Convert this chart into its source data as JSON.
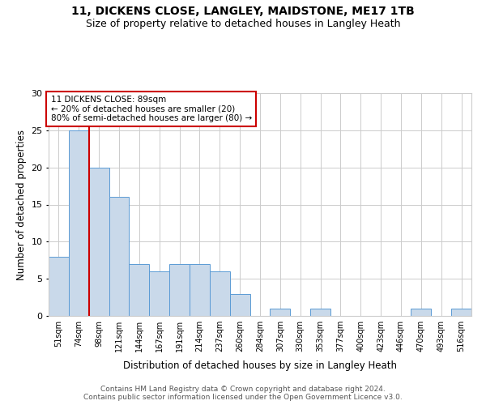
{
  "title1": "11, DICKENS CLOSE, LANGLEY, MAIDSTONE, ME17 1TB",
  "title2": "Size of property relative to detached houses in Langley Heath",
  "xlabel": "Distribution of detached houses by size in Langley Heath",
  "ylabel": "Number of detached properties",
  "bar_labels": [
    "51sqm",
    "74sqm",
    "98sqm",
    "121sqm",
    "144sqm",
    "167sqm",
    "191sqm",
    "214sqm",
    "237sqm",
    "260sqm",
    "284sqm",
    "307sqm",
    "330sqm",
    "353sqm",
    "377sqm",
    "400sqm",
    "423sqm",
    "446sqm",
    "470sqm",
    "493sqm",
    "516sqm"
  ],
  "bar_values": [
    8,
    25,
    20,
    16,
    7,
    6,
    7,
    7,
    6,
    3,
    0,
    1,
    0,
    1,
    0,
    0,
    0,
    0,
    1,
    0,
    1
  ],
  "bar_color": "#c9d9ea",
  "bar_edgecolor": "#5b9bd5",
  "vline_x": 1.5,
  "vline_color": "#cc0000",
  "annotation_lines": [
    "11 DICKENS CLOSE: 89sqm",
    "← 20% of detached houses are smaller (20)",
    "80% of semi-detached houses are larger (80) →"
  ],
  "annotation_box_color": "#ffffff",
  "annotation_box_edgecolor": "#cc0000",
  "ylim": [
    0,
    30
  ],
  "yticks": [
    0,
    5,
    10,
    15,
    20,
    25,
    30
  ],
  "footer1": "Contains HM Land Registry data © Crown copyright and database right 2024.",
  "footer2": "Contains public sector information licensed under the Open Government Licence v3.0.",
  "grid_color": "#cccccc",
  "bg_color": "#ffffff",
  "title1_fontsize": 10,
  "title2_fontsize": 9,
  "xlabel_fontsize": 8.5,
  "ylabel_fontsize": 8.5,
  "xtick_fontsize": 7,
  "ytick_fontsize": 8,
  "footer_fontsize": 6.5,
  "annot_fontsize": 7.5
}
